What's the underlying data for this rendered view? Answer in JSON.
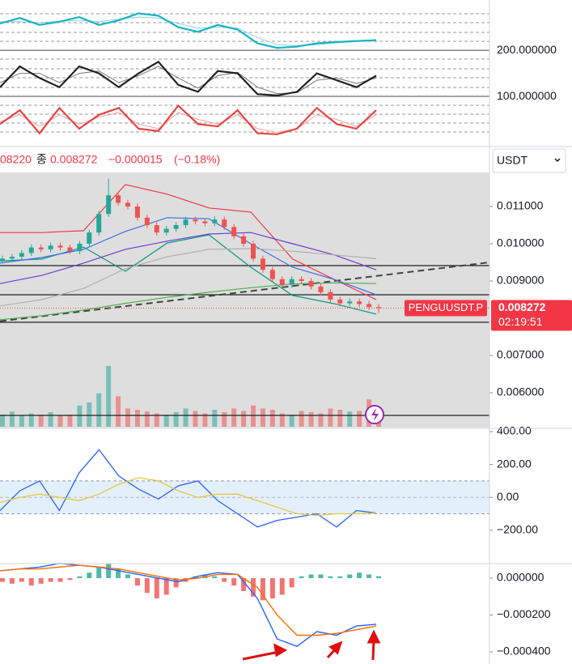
{
  "chart_data": [
    {
      "type": "line",
      "ylim": [
        -7,
        309
      ],
      "yticks": [
        {
          "value": 200,
          "label": "200.000000"
        },
        {
          "value": 100,
          "label": "100.000000"
        }
      ],
      "series": [
        {
          "color": "#8fd3dc",
          "values": [
            262,
            262,
            260,
            263,
            265,
            262,
            268,
            272,
            270,
            258,
            248,
            250,
            248,
            228,
            212,
            210,
            212,
            216,
            219,
            221
          ]
        },
        {
          "color": "#17b3c7",
          "values": [
            258,
            270,
            255,
            262,
            272,
            255,
            265,
            280,
            275,
            250,
            240,
            255,
            245,
            215,
            205,
            208,
            215,
            218,
            220,
            222
          ]
        },
        {
          "color": "#777777",
          "values": [
            130,
            150,
            150,
            130,
            150,
            155,
            130,
            145,
            165,
            140,
            118,
            145,
            152,
            120,
            106,
            108,
            135,
            140,
            128,
            140
          ]
        },
        {
          "color": "#222222",
          "values": [
            120,
            165,
            140,
            120,
            165,
            150,
            120,
            150,
            175,
            125,
            110,
            155,
            150,
            105,
            102,
            110,
            150,
            135,
            120,
            145
          ]
        },
        {
          "color": "#f4a3a3",
          "values": [
            45,
            60,
            35,
            60,
            40,
            55,
            65,
            40,
            30,
            65,
            50,
            40,
            60,
            30,
            22,
            30,
            60,
            50,
            35,
            60
          ]
        },
        {
          "color": "#e84545",
          "values": [
            40,
            70,
            20,
            75,
            30,
            60,
            75,
            30,
            25,
            80,
            40,
            35,
            70,
            20,
            18,
            30,
            75,
            40,
            30,
            70
          ]
        }
      ]
    },
    {
      "type": "candlestick",
      "header": {
        "prev": "08220",
        "label": "종",
        "close": "0.008272",
        "change": "−0.000015",
        "change_pct": "(−0.18%)"
      },
      "currency": "USDT",
      "ylim": [
        0.005087,
        0.011913
      ],
      "yticks": [
        {
          "value": 0.011,
          "label": "0.011000"
        },
        {
          "value": 0.01,
          "label": "0.010000"
        },
        {
          "value": 0.009,
          "label": "0.009000"
        },
        {
          "value": 0.007,
          "label": "0.007000"
        },
        {
          "value": 0.006,
          "label": "0.006000"
        }
      ],
      "up_color": "#26a69a",
      "down_color": "#ef5350",
      "open": [
        0.00955,
        0.0096,
        0.00965,
        0.00975,
        0.0099,
        0.00985,
        0.00995,
        0.0099,
        0.0098,
        0.01,
        0.0103,
        0.0108,
        0.0113,
        0.0111,
        0.011,
        0.0107,
        0.0105,
        0.0103,
        0.0104,
        0.0105,
        0.01065,
        0.0106,
        0.01055,
        0.01065,
        0.01045,
        0.0102,
        0.01,
        0.0096,
        0.0093,
        0.00905,
        0.0089,
        0.00905,
        0.009,
        0.00885,
        0.0087,
        0.0085,
        0.0084,
        0.00845,
        0.00838,
        0.0083
      ],
      "high": [
        0.00968,
        0.00973,
        0.00983,
        0.00998,
        0.00998,
        0.01003,
        0.01003,
        0.00998,
        0.01008,
        0.01038,
        0.01088,
        0.01175,
        0.01138,
        0.01118,
        0.01108,
        0.01078,
        0.01058,
        0.01048,
        0.01058,
        0.01073,
        0.01073,
        0.01068,
        0.01073,
        0.01073,
        0.01053,
        0.01028,
        0.01008,
        0.00968,
        0.00938,
        0.00913,
        0.00913,
        0.00913,
        0.00908,
        0.00893,
        0.00878,
        0.00858,
        0.00853,
        0.00853,
        0.00846,
        0.00838
      ],
      "low": [
        0.00947,
        0.00952,
        0.00957,
        0.00967,
        0.00977,
        0.00977,
        0.00982,
        0.00972,
        0.00972,
        0.00992,
        0.01022,
        0.01072,
        0.01102,
        0.01092,
        0.01062,
        0.01042,
        0.01022,
        0.01022,
        0.01032,
        0.01042,
        0.01052,
        0.01047,
        0.01047,
        0.01037,
        0.01012,
        0.00992,
        0.00952,
        0.00922,
        0.00897,
        0.00882,
        0.00882,
        0.00892,
        0.00877,
        0.00862,
        0.00842,
        0.00832,
        0.00832,
        0.0083,
        0.00822,
        0.00815
      ],
      "close": [
        0.0096,
        0.00965,
        0.00975,
        0.0099,
        0.00985,
        0.00995,
        0.0099,
        0.0098,
        0.01,
        0.0103,
        0.0108,
        0.0113,
        0.0111,
        0.011,
        0.0107,
        0.0105,
        0.0103,
        0.0104,
        0.0105,
        0.01065,
        0.0106,
        0.01055,
        0.01065,
        0.01045,
        0.0102,
        0.01,
        0.0096,
        0.0093,
        0.00905,
        0.0089,
        0.00905,
        0.009,
        0.00885,
        0.0087,
        0.0085,
        0.0084,
        0.00845,
        0.00838,
        0.0083,
        0.008272
      ],
      "volume": [
        20,
        25,
        18,
        22,
        20,
        24,
        18,
        20,
        35,
        40,
        55,
        100,
        50,
        30,
        28,
        25,
        22,
        20,
        24,
        30,
        26,
        22,
        28,
        24,
        30,
        26,
        35,
        30,
        28,
        22,
        20,
        26,
        24,
        22,
        30,
        28,
        25,
        26,
        45,
        20
      ],
      "lines": [
        {
          "color": "#f23645",
          "values": [
            0.0103,
            0.0103,
            0.01035,
            0.01159,
            0.01133,
            0.01096,
            0.01085,
            0.00959,
            0.00904,
            0.0085
          ]
        },
        {
          "color": "#089981",
          "values": [
            0.00954,
            0.00959,
            0.00991,
            0.00926,
            0.01002,
            0.01024,
            0.00937,
            0.00861,
            0.00839,
            0.00811
          ]
        },
        {
          "color": "#3f6ee8",
          "values": [
            0.00948,
            0.00963,
            0.00985,
            0.01033,
            0.0107,
            0.01067,
            0.01,
            0.00937,
            0.00904,
            0.00863
          ]
        },
        {
          "color": "#6a3fd0",
          "values": [
            0.00893,
            0.00915,
            0.00948,
            0.00985,
            0.01007,
            0.01026,
            0.0103,
            0.01,
            0.0097,
            0.0093
          ]
        },
        {
          "color": "#b0b0b0",
          "values": [
            0.00833,
            0.0085,
            0.0088,
            0.00933,
            0.00965,
            0.00985,
            0.00987,
            0.0098,
            0.0097,
            0.0096
          ]
        },
        {
          "color": "#4caf50",
          "values": [
            0.00796,
            0.00807,
            0.00822,
            0.0084,
            0.00856,
            0.0087,
            0.00882,
            0.00892,
            0.00895,
            0.00893
          ]
        }
      ],
      "levels": [
        0.009413,
        0.00863,
        0.007891,
        0.005391
      ],
      "trendline": [
        0.00792,
        0.0095
      ],
      "last_price": {
        "value": 0.008272,
        "label": "0.008272"
      },
      "symbol": "PENGUUSDT.P",
      "countdown": "02:19:51"
    },
    {
      "type": "line",
      "ylim": [
        -398,
        415
      ],
      "yticks": [
        {
          "value": 400,
          "label": "400.00"
        },
        {
          "value": 200,
          "label": "200.00"
        },
        {
          "value": 0,
          "label": "0.00"
        },
        {
          "value": -200,
          "label": "−200.00"
        }
      ],
      "band": [
        -100,
        100
      ],
      "series": [
        {
          "color": "#2962ff",
          "values": [
            -80,
            40,
            100,
            -80,
            150,
            290,
            130,
            50,
            -10,
            70,
            100,
            -20,
            -100,
            -180,
            -140,
            -120,
            -100,
            -180,
            -80,
            -95
          ]
        },
        {
          "color": "#e8c547",
          "values": [
            -30,
            0,
            20,
            0,
            -20,
            20,
            80,
            120,
            100,
            40,
            0,
            20,
            20,
            -20,
            -60,
            -100,
            -110,
            -100,
            -100,
            -95
          ]
        }
      ]
    },
    {
      "type": "macd",
      "ylim": [
        -0.000466,
        7.47e-05
      ],
      "yticks": [
        {
          "value": 0,
          "label": "0.000000"
        },
        {
          "value": -0.0002,
          "label": "−0.000200"
        },
        {
          "value": -0.0004,
          "label": "−0.000400"
        }
      ],
      "up_color": "#26a69a",
      "down_color": "#ef5350",
      "histogram": [
        -2e-05,
        -3e-05,
        -2e-05,
        -4e-05,
        -3e-05,
        -2e-05,
        -2e-05,
        -1e-05,
        1e-05,
        3e-05,
        6e-05,
        8e-05,
        5e-05,
        2e-05,
        -4e-05,
        -8e-05,
        -0.00011,
        -9e-05,
        -5e-05,
        -2e-05,
        1e-05,
        2e-05,
        1e-05,
        -2e-05,
        -4e-05,
        -7e-05,
        -0.0001,
        -0.00012,
        -0.00011,
        -9e-05,
        -5e-05,
        1e-05,
        2e-05,
        2e-05,
        1e-05,
        1e-05,
        2e-05,
        3e-05,
        2e-05,
        1e-05
      ],
      "series": [
        {
          "color": "#2962ff",
          "values": [
            4e-05,
            5e-05,
            6e-05,
            8e-05,
            7e-05,
            6e-05,
            4e-05,
            2e-05,
            0.0,
            -2e-05,
            1e-05,
            3e-05,
            2e-05,
            -0.00011,
            -0.00033,
            -0.00037,
            -0.00029,
            -0.00031,
            -0.00026,
            -0.00025
          ]
        },
        {
          "color": "#ff6d00",
          "values": [
            4e-05,
            5e-05,
            5e-05,
            6e-05,
            7e-05,
            6e-05,
            5e-05,
            3e-05,
            1e-05,
            -1e-05,
            0.0,
            2e-05,
            2e-05,
            -5e-05,
            -0.0002,
            -0.00031,
            -0.00031,
            -0.0003,
            -0.00028,
            -0.00026
          ]
        }
      ]
    }
  ]
}
